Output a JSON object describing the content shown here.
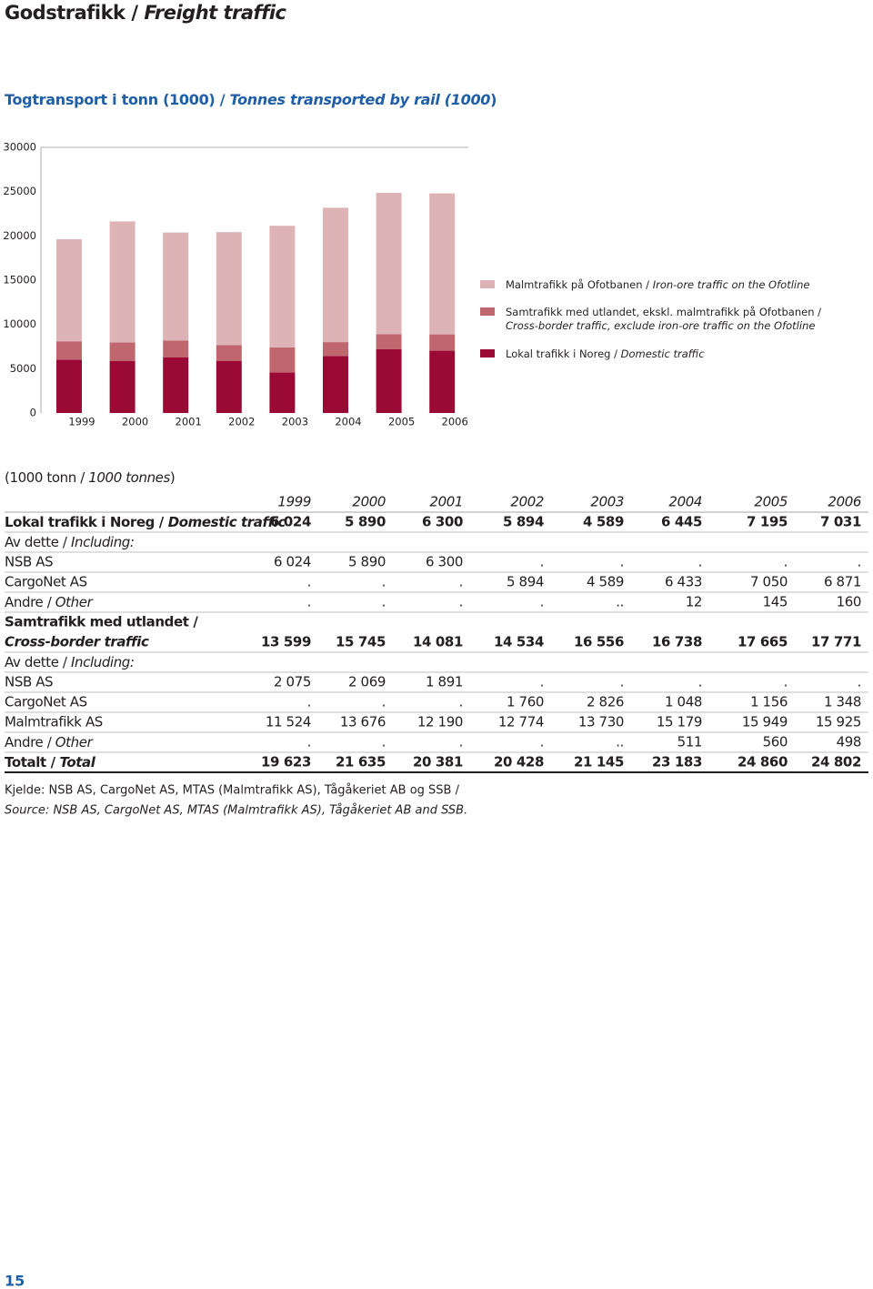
{
  "header": {
    "title": "Godstrafikk / Freight traffic"
  },
  "chart_data": {
    "type": "bar",
    "stacked": true,
    "title": "Togtransport i tonn (1000) / Tonnes transported by rail (1000)",
    "categories": [
      "1999",
      "2000",
      "2001",
      "2002",
      "2003",
      "2004",
      "2005",
      "2006"
    ],
    "ylim": [
      0,
      30000
    ],
    "yticks": [
      0,
      5000,
      10000,
      15000,
      20000,
      25000,
      30000
    ],
    "legend": "right",
    "series": [
      {
        "name": "Lokal trafikk i Noreg / Domestic traffic",
        "color": "#9b0a35",
        "values": [
          6024,
          5890,
          6300,
          5894,
          4589,
          6445,
          7195,
          7031
        ]
      },
      {
        "name": "Samtrafikk med utlandet, ekskl. malmtrafikk på Ofotbanen / Cross-border traffic, exclude iron-ore traffic on the Ofotline",
        "color": "#c0666e",
        "values": [
          2075,
          2069,
          1891,
          1760,
          2826,
          1559,
          1716,
          1846
        ]
      },
      {
        "name": "Malmtrafikk på Ofotbanen / Iron-ore traffic on the Ofotline",
        "color": "#deb3b6",
        "values": [
          11524,
          13676,
          12190,
          12774,
          13730,
          15179,
          15949,
          15925
        ]
      }
    ]
  },
  "table": {
    "unit": "(1000 tonn / 1000 tonnes)",
    "columns": [
      "1999",
      "2000",
      "2001",
      "2002",
      "2003",
      "2004",
      "2005",
      "2006"
    ],
    "rows": [
      {
        "label": "Lokal trafikk i Noreg / Domestic traffic",
        "bold": true,
        "cells": [
          "6 024",
          "5 890",
          "6 300",
          "5 894",
          "4 589",
          "6 445",
          "7 195",
          "7 031"
        ]
      },
      {
        "label": "Av dette / Including:"
      },
      {
        "label": "NSB AS",
        "cells": [
          "6 024",
          "5 890",
          "6 300",
          ".",
          ".",
          ".",
          ".",
          "."
        ]
      },
      {
        "label": "CargoNet AS",
        "cells": [
          ".",
          ".",
          ".",
          "5 894",
          "4 589",
          "6 433",
          "7 050",
          "6 871"
        ]
      },
      {
        "label": "Andre / Other",
        "cells": [
          ".",
          ".",
          ".",
          ".",
          "..",
          "12",
          "145",
          "160"
        ]
      },
      {
        "label": "Samtrafikk med utlandet /",
        "bold": true
      },
      {
        "label": "Cross-border traffic",
        "bold": true,
        "italic": true,
        "cells": [
          "13 599",
          "15 745",
          "14 081",
          "14 534",
          "16 556",
          "16 738",
          "17 665",
          "17 771"
        ]
      },
      {
        "label": "Av dette / Including:"
      },
      {
        "label": "NSB AS",
        "cells": [
          "2 075",
          "2 069",
          "1 891",
          ".",
          ".",
          ".",
          ".",
          "."
        ]
      },
      {
        "label": "CargoNet AS",
        "cells": [
          ".",
          ".",
          ".",
          "1 760",
          "2 826",
          "1 048",
          "1 156",
          "1 348"
        ]
      },
      {
        "label": "Malmtrafikk AS",
        "cells": [
          "11 524",
          "13 676",
          "12 190",
          "12 774",
          "13 730",
          "15 179",
          "15 949",
          "15 925"
        ]
      },
      {
        "label": "Andre / Other",
        "cells": [
          ".",
          ".",
          ".",
          ".",
          "..",
          "511",
          "560",
          "498"
        ]
      },
      {
        "label": "Totalt / Total",
        "bold": true,
        "cells": [
          "19 623",
          "21 635",
          "20 381",
          "20 428",
          "21 145",
          "23 183",
          "24 860",
          "24 802"
        ]
      }
    ]
  },
  "source": [
    "Kjelde: NSB AS, CargoNet AS, MTAS (Malmtrafikk AS), Tågåkeriet AB og SSB /",
    "Source: NSB AS, CargoNet AS, MTAS (Malmtrafikk AS), Tågåkeriet AB and SSB."
  ],
  "page_number": "15"
}
